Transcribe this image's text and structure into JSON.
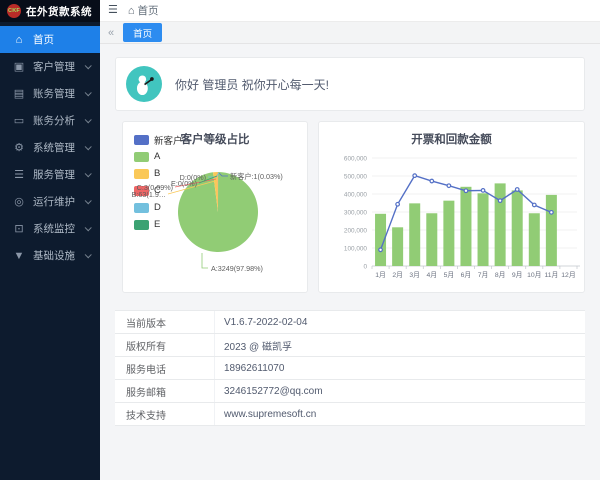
{
  "app": {
    "logo_text": "CKF",
    "title": "在外货款系统"
  },
  "topbar": {
    "hamburger": "☰",
    "breadcrumb_home": "首页"
  },
  "tabbar": {
    "collapse_icon": "«",
    "active_tab": "首页"
  },
  "sidebar": {
    "items": [
      {
        "key": "home",
        "label": "首页",
        "icon": "⌂",
        "icon_name": "home-icon",
        "active": true,
        "expandable": false
      },
      {
        "key": "customers",
        "label": "客户管理",
        "icon": "▣",
        "icon_name": "customer-icon",
        "active": false,
        "expandable": true
      },
      {
        "key": "billing",
        "label": "账务管理",
        "icon": "▤",
        "icon_name": "billing-file-icon",
        "active": false,
        "expandable": true
      },
      {
        "key": "analysis",
        "label": "账务分析",
        "icon": "▭",
        "icon_name": "analysis-icon",
        "active": false,
        "expandable": true
      },
      {
        "key": "system",
        "label": "系统管理",
        "icon": "⚙",
        "icon_name": "gear-icon",
        "active": false,
        "expandable": true
      },
      {
        "key": "service",
        "label": "服务管理",
        "icon": "☰",
        "icon_name": "service-list-icon",
        "active": false,
        "expandable": true
      },
      {
        "key": "maintenance",
        "label": "运行维护",
        "icon": "◎",
        "icon_name": "maintenance-icon",
        "active": false,
        "expandable": true
      },
      {
        "key": "monitoring",
        "label": "系统监控",
        "icon": "⊡",
        "icon_name": "monitor-icon",
        "active": false,
        "expandable": true
      },
      {
        "key": "infrastructure",
        "label": "基础设施",
        "icon": "▼",
        "icon_name": "infrastructure-icon",
        "active": false,
        "expandable": true
      }
    ]
  },
  "greeting": {
    "text": "你好 管理员 祝你开心每一天!"
  },
  "chart_data": [
    {
      "type": "pie",
      "title": "客户等级占比",
      "legend_position": "left",
      "legend": [
        "新客户",
        "A",
        "B",
        "C",
        "D",
        "E"
      ],
      "slices": [
        {
          "name": "新客户",
          "count": 1,
          "pct": 0.03,
          "color": "#5470c6",
          "label": "新客户:1(0.03%)"
        },
        {
          "name": "A",
          "count": 3249,
          "pct": 97.98,
          "color": "#91cc75",
          "label": "A:3249(97.98%)"
        },
        {
          "name": "B",
          "count": 63,
          "pct": 1.9,
          "color": "#fac858",
          "label": "B:63(1.9…"
        },
        {
          "name": "C",
          "count": 3,
          "pct": 0.09,
          "color": "#ee6666",
          "label": "C:3(0.09%)"
        },
        {
          "name": "D",
          "count": 0,
          "pct": 0,
          "color": "#73c0de",
          "label": "D:0(0%)"
        },
        {
          "name": "E",
          "count": 0,
          "pct": 0,
          "color": "#3ba272",
          "label": "E:0(0%)"
        }
      ]
    },
    {
      "type": "bar",
      "title": "开票和回款金额",
      "categories": [
        "1月",
        "2月",
        "3月",
        "4月",
        "5月",
        "6月",
        "7月",
        "8月",
        "9月",
        "10月",
        "11月",
        "12月"
      ],
      "series": [
        {
          "name": "bar-series",
          "type": "bar",
          "color": "#91cc75",
          "values": [
            290000,
            215000,
            348000,
            293000,
            363000,
            440000,
            404000,
            459000,
            420000,
            293000,
            395000,
            null
          ]
        },
        {
          "name": "line-series",
          "type": "line",
          "color": "#5470c6",
          "values": [
            90000,
            343000,
            502000,
            472000,
            446000,
            418000,
            420000,
            363000,
            425000,
            339000,
            298000,
            null
          ]
        }
      ],
      "ylim": [
        0,
        600000
      ],
      "ytick_labels": [
        "0",
        "100,000",
        "200,000",
        "300,000",
        "400,000",
        "500,000",
        "600,000"
      ],
      "grid": true,
      "legend_position": "none"
    }
  ],
  "info": {
    "rows": [
      {
        "label": "当前版本",
        "value": "V1.6.7-2022-02-04"
      },
      {
        "label": "版权所有",
        "value": "2023 @ 磁凯孚"
      },
      {
        "label": "服务电话",
        "value": "18962611070"
      },
      {
        "label": "服务邮箱",
        "value": "3246152772@qq.com"
      },
      {
        "label": "技术支持",
        "value": "www.supremesoft.cn"
      }
    ]
  },
  "colors": {
    "accent": "#2d8cf0",
    "sidebar_bg": "#0d1b2e",
    "logo_bar_bg": "#070d19",
    "avatar_bg": "#41c5bf"
  }
}
